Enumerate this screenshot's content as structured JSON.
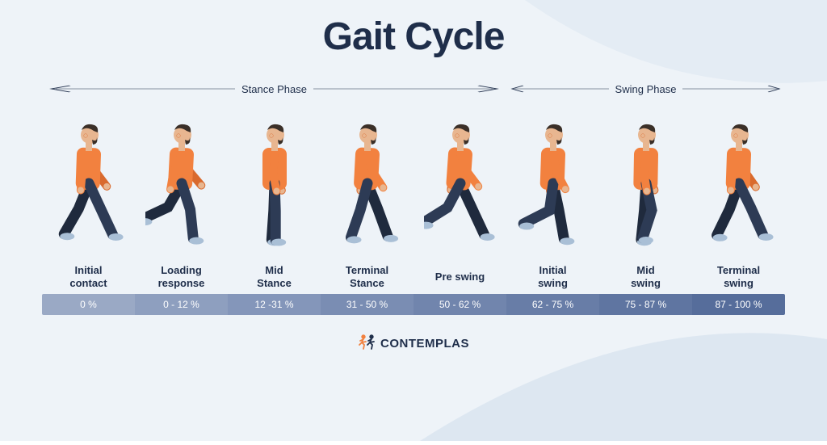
{
  "title": "Gait Cycle",
  "colors": {
    "bg_base": "#eef3f8",
    "bg_wave1": "#e4ecf4",
    "bg_wave2": "#dde7f1",
    "title": "#1f2e4a",
    "label_text": "#1f2e4a",
    "arrow": "#1f2e4a",
    "pct_text": "#ffffff",
    "skin": "#e8b690",
    "hair": "#3a2f28",
    "shirt": "#f2813f",
    "shirt_shadow": "#d96a2e",
    "pants": "#2d3b55",
    "pants_shadow": "#1f2a3d",
    "shoe": "#a9bfd6",
    "logo_icon1": "#f2813f",
    "logo_icon2": "#1f2e4a",
    "logo_text": "#1f2e4a"
  },
  "phases": [
    {
      "label": "Stance Phase",
      "span": 5
    },
    {
      "label": "Swing Phase",
      "span": 3
    }
  ],
  "stages": [
    {
      "label": "Initial\ncontact",
      "pct": "0 %",
      "bar_color": "#9aa9c5",
      "pose": "initial_contact"
    },
    {
      "label": "Loading\nresponse",
      "pct": "0 - 12 %",
      "bar_color": "#8e9fbf",
      "pose": "loading_response"
    },
    {
      "label": "Mid\nStance",
      "pct": "12 -31 %",
      "bar_color": "#8496ba",
      "pose": "mid_stance"
    },
    {
      "label": "Terminal\nStance",
      "pct": "31 - 50 %",
      "bar_color": "#7a8db3",
      "pose": "terminal_stance"
    },
    {
      "label": "Pre swing",
      "pct": "50 - 62 %",
      "bar_color": "#7185ad",
      "pose": "pre_swing"
    },
    {
      "label": "Initial\nswing",
      "pct": "62 - 75 %",
      "bar_color": "#687da7",
      "pose": "initial_swing"
    },
    {
      "label": "Mid\nswing",
      "pct": "75 - 87 %",
      "bar_color": "#5f75a1",
      "pose": "mid_swing"
    },
    {
      "label": "Terminal\nswing",
      "pct": "87 - 100 %",
      "bar_color": "#566d9b",
      "pose": "terminal_swing"
    }
  ],
  "poses": {
    "initial_contact": {
      "l_hip": 25,
      "l_knee": 0,
      "r_hip": -22,
      "r_knee": 8,
      "l_sh": -20,
      "r_sh": 22,
      "torso": 2
    },
    "loading_response": {
      "l_hip": 18,
      "l_knee": 12,
      "r_hip": -30,
      "r_knee": 35,
      "l_sh": -25,
      "r_sh": 25,
      "torso": 3
    },
    "mid_stance": {
      "l_hip": 2,
      "l_knee": 2,
      "r_hip": -2,
      "r_knee": 2,
      "l_sh": -4,
      "r_sh": 4,
      "torso": 0
    },
    "terminal_stance": {
      "l_hip": -15,
      "l_knee": 4,
      "r_hip": 22,
      "r_knee": 2,
      "l_sh": 18,
      "r_sh": -18,
      "torso": 3
    },
    "pre_swing": {
      "l_hip": -28,
      "l_knee": 30,
      "r_hip": 25,
      "r_knee": 0,
      "l_sh": 22,
      "r_sh": -22,
      "torso": 4
    },
    "initial_swing": {
      "l_hip": -8,
      "l_knee": 55,
      "r_hip": 12,
      "r_knee": 2,
      "l_sh": 12,
      "r_sh": -12,
      "torso": 2
    },
    "mid_swing": {
      "l_hip": 12,
      "l_knee": 30,
      "r_hip": -4,
      "r_knee": 2,
      "l_sh": -6,
      "r_sh": 6,
      "torso": 1
    },
    "terminal_swing": {
      "l_hip": 26,
      "l_knee": 2,
      "r_hip": -20,
      "r_knee": 6,
      "l_sh": -20,
      "r_sh": 20,
      "torso": 2
    }
  },
  "logo": {
    "text": "CONTEMPLAS"
  }
}
